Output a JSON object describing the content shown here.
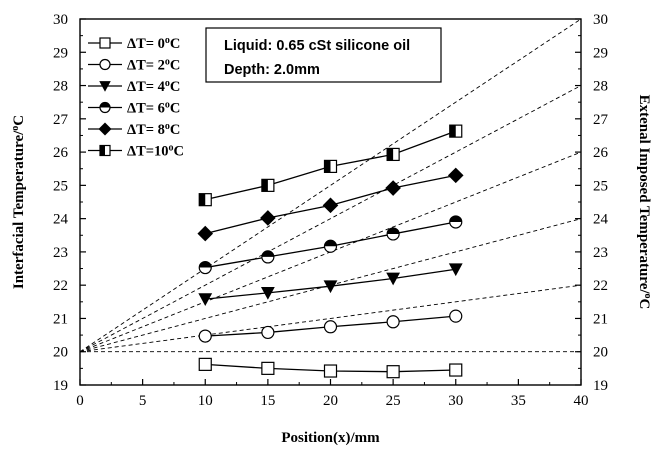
{
  "chart_data": {
    "type": "line",
    "xlabel": "Position(x)/mm",
    "ylabel": "Interfacial Temperature/°C",
    "y2label": "Extenal Imposed Temperature/°C",
    "xlim": [
      0,
      40
    ],
    "ylim": [
      19,
      30
    ],
    "xticks": [
      0,
      5,
      10,
      15,
      20,
      25,
      30,
      35,
      40
    ],
    "yticks": [
      19,
      20,
      21,
      22,
      23,
      24,
      25,
      26,
      27,
      28,
      29,
      30
    ],
    "grid": false,
    "legend_position": "top-left",
    "annotation": [
      "Liquid: 0.65 cSt silicone oil",
      "Depth: 2.0mm"
    ],
    "x": [
      10,
      15,
      20,
      25,
      30
    ],
    "series": [
      {
        "name": "ΔT= 0°C",
        "marker": "square-open",
        "values": [
          19.62,
          19.5,
          19.42,
          19.4,
          19.45
        ]
      },
      {
        "name": "ΔT= 2°C",
        "marker": "circle-open",
        "values": [
          20.47,
          20.58,
          20.75,
          20.9,
          21.07
        ]
      },
      {
        "name": "ΔT= 4°C",
        "marker": "triangle-down",
        "values": [
          21.58,
          21.77,
          21.97,
          22.2,
          22.48
        ]
      },
      {
        "name": "ΔT= 6°C",
        "marker": "circle-half",
        "values": [
          22.53,
          22.85,
          23.17,
          23.54,
          23.9
        ]
      },
      {
        "name": "ΔT= 8°C",
        "marker": "diamond",
        "values": [
          23.55,
          24.02,
          24.4,
          24.92,
          25.3
        ]
      },
      {
        "name": "ΔT=10°C",
        "marker": "square-half",
        "values": [
          24.57,
          25.0,
          25.57,
          25.93,
          26.63
        ]
      }
    ],
    "imposed_lines": [
      {
        "x": [
          0,
          40
        ],
        "y": [
          20,
          20
        ]
      },
      {
        "x": [
          0,
          40
        ],
        "y": [
          20,
          22
        ]
      },
      {
        "x": [
          0,
          40
        ],
        "y": [
          20,
          24
        ]
      },
      {
        "x": [
          0,
          40
        ],
        "y": [
          20,
          26
        ]
      },
      {
        "x": [
          0,
          40
        ],
        "y": [
          20,
          28
        ]
      },
      {
        "x": [
          0,
          40
        ],
        "y": [
          20,
          30
        ]
      }
    ]
  }
}
